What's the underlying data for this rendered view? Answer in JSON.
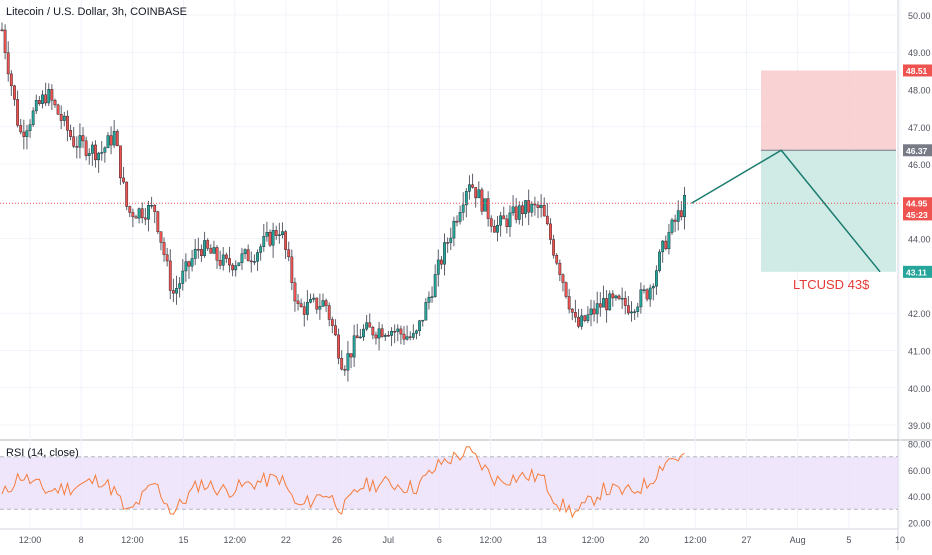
{
  "chart_data": [
    {
      "type": "candlestick",
      "title": "Litecoin / U.S. Dollar, 3h, COINBASE",
      "symbol": "LTCUSD",
      "ylim": [
        38.6,
        50.4
      ],
      "price_scale_labels": [
        "50.00",
        "49.00",
        "48.00",
        "47.00",
        "46.00",
        "44.00",
        "42.00",
        "41.00",
        "40.00",
        "39.00"
      ],
      "time_labels": [
        "12:00",
        "8",
        "12:00",
        "15",
        "12:00",
        "22",
        "26",
        "Jul",
        "6",
        "12:00",
        "13",
        "12:00",
        "20",
        "12:00",
        "27",
        "Aug",
        "5",
        "10"
      ],
      "price_markers": [
        {
          "value": 48.51,
          "label": "48.51",
          "color": "#ef5350"
        },
        {
          "value": 46.37,
          "label": "46.37",
          "color": "#787b86"
        },
        {
          "value": 44.95,
          "label": "44.95",
          "color": "#ef5350"
        },
        {
          "value": 44.65,
          "label": "45:23",
          "color": "#ef5350"
        },
        {
          "value": 43.11,
          "label": "43.11",
          "color": "#26a69a"
        }
      ],
      "current_price": 44.95,
      "ohlc_path": [
        [
          0,
          49.6
        ],
        [
          0.02,
          46.8
        ],
        [
          0.05,
          47.9
        ],
        [
          0.08,
          46.6
        ],
        [
          0.11,
          46.3
        ],
        [
          0.125,
          46.8
        ],
        [
          0.14,
          44.7
        ],
        [
          0.17,
          44.8
        ],
        [
          0.19,
          42.5
        ],
        [
          0.22,
          43.8
        ],
        [
          0.25,
          43.3
        ],
        [
          0.28,
          43.6
        ],
        [
          0.31,
          44.3
        ],
        [
          0.33,
          42.1
        ],
        [
          0.36,
          42.3
        ],
        [
          0.38,
          40.6
        ],
        [
          0.4,
          41.5
        ],
        [
          0.43,
          41.6
        ],
        [
          0.46,
          41.3
        ],
        [
          0.49,
          43.5
        ],
        [
          0.52,
          45.6
        ],
        [
          0.55,
          44.3
        ],
        [
          0.58,
          44.8
        ],
        [
          0.6,
          44.8
        ],
        [
          0.62,
          43.3
        ],
        [
          0.64,
          41.6
        ],
        [
          0.67,
          42.3
        ],
        [
          0.7,
          42.2
        ],
        [
          0.72,
          42.6
        ],
        [
          0.74,
          44.0
        ],
        [
          0.76,
          44.95
        ]
      ],
      "projection": {
        "label": "LTCUSD 43$",
        "path": [
          [
            0.77,
            44.95
          ],
          [
            0.87,
            46.37
          ],
          [
            0.98,
            43.11
          ]
        ]
      },
      "position_tool": {
        "entry": 46.37,
        "stop": 48.51,
        "target": 43.11,
        "stop_color": "#f8cbcb",
        "target_color": "#cbe9e3"
      },
      "colors": {
        "up": "#26a69a",
        "down": "#ef5350",
        "wick": "#5d606b"
      }
    },
    {
      "type": "line",
      "title": "RSI (14, close)",
      "ylim": [
        15,
        82
      ],
      "levels": [
        70,
        30
      ],
      "scale_labels": [
        "80.00",
        "60.00",
        "40.00",
        "20.00"
      ],
      "band_color": "#eadcfb",
      "line_color": "#f57c3b",
      "path": [
        [
          0,
          40
        ],
        [
          0.02,
          56
        ],
        [
          0.05,
          44
        ],
        [
          0.08,
          47
        ],
        [
          0.11,
          53
        ],
        [
          0.125,
          44
        ],
        [
          0.14,
          26
        ],
        [
          0.17,
          50
        ],
        [
          0.19,
          27
        ],
        [
          0.22,
          50
        ],
        [
          0.25,
          44
        ],
        [
          0.28,
          50
        ],
        [
          0.31,
          54
        ],
        [
          0.33,
          31
        ],
        [
          0.36,
          43
        ],
        [
          0.38,
          30
        ],
        [
          0.4,
          48
        ],
        [
          0.43,
          50
        ],
        [
          0.46,
          46
        ],
        [
          0.49,
          66
        ],
        [
          0.52,
          74
        ],
        [
          0.55,
          52
        ],
        [
          0.58,
          55
        ],
        [
          0.6,
          55
        ],
        [
          0.62,
          34
        ],
        [
          0.64,
          27
        ],
        [
          0.67,
          45
        ],
        [
          0.7,
          43
        ],
        [
          0.72,
          50
        ],
        [
          0.74,
          68
        ],
        [
          0.76,
          70
        ]
      ]
    }
  ]
}
